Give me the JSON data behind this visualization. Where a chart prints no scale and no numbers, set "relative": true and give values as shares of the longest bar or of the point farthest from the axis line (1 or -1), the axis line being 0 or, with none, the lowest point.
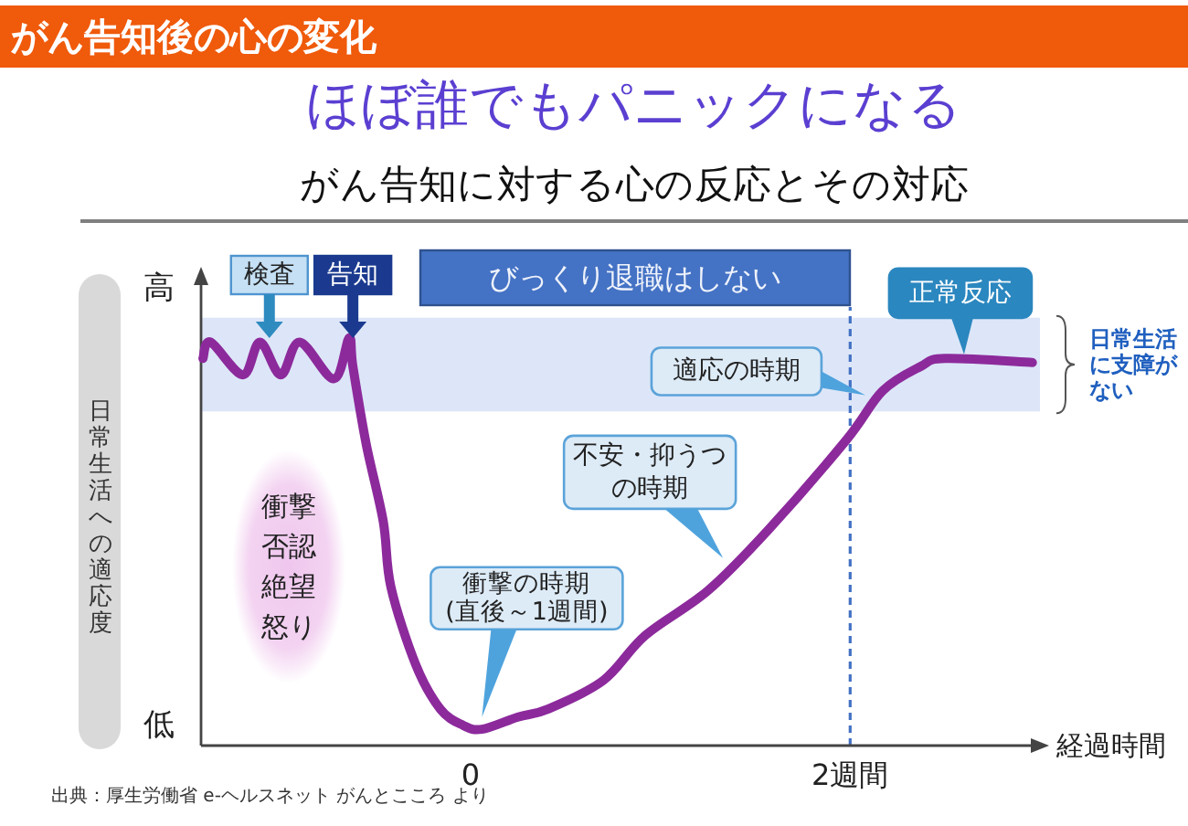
{
  "chart_data": {
    "type": "line",
    "title": "がん告知後の心の変化",
    "subtitle": "ほぼ誰でもパニックになる",
    "xlabel": "経過時間",
    "ylabel": "日常生活への適応度",
    "relative": true,
    "x": [
      -1.41,
      -1.37,
      -1.2,
      -1.11,
      -1.0,
      -0.9,
      -0.72,
      -0.64,
      -0.62,
      -0.55,
      -0.46,
      -0.42,
      -0.29,
      -0.16,
      -0.04,
      0.06,
      0.25,
      0.41,
      0.7,
      0.92,
      1.25,
      1.57,
      1.98,
      2.17,
      2.37,
      2.5,
      2.96
    ],
    "values": [
      0.95,
      0.99,
      0.91,
      0.99,
      0.91,
      0.99,
      0.9,
      1.0,
      0.93,
      0.74,
      0.55,
      0.39,
      0.2,
      0.09,
      0.05,
      0.04,
      0.07,
      0.09,
      0.16,
      0.27,
      0.38,
      0.53,
      0.75,
      0.87,
      0.93,
      0.95,
      0.94
    ],
    "color": "#8c2a9c",
    "xlim": [
      -1.42,
      3.0
    ],
    "xticks": [
      0,
      {
        "value": 2,
        "label": "2週間"
      }
    ],
    "bands": [
      {
        "axis": "y",
        "from": 0.82,
        "to": 1.05,
        "label": "日常生活に支障がない",
        "color": "#dde6f8"
      }
    ],
    "ref_lines": [
      {
        "axis": "x",
        "value": 2,
        "color": "#4472c4",
        "line_style": "dashed"
      }
    ],
    "annotations": [
      "がん告知に対する心の反応とその対応",
      "高",
      "低",
      {
        "text": "検査",
        "x": -1.06,
        "y": 1.0
      },
      {
        "text": "告知",
        "x": -0.62,
        "y": 1.0
      },
      "びっくり退職はしない",
      {
        "text": "正常反応",
        "x": 2.6,
        "y": 0.96
      },
      {
        "text": "適応の時期",
        "x": 2.08,
        "y": 0.86
      },
      {
        "text": "不安・抑うつの時期",
        "x": 1.33,
        "y": 0.46
      },
      {
        "text": "衝撃の時期(直後～1週間)",
        "x": 0.06,
        "y": 0.07
      },
      "衝撃",
      "否認",
      "絶望",
      "怒り",
      "出典：厚生労働省 e-ヘルスネット がんとこころ より"
    ]
  }
}
